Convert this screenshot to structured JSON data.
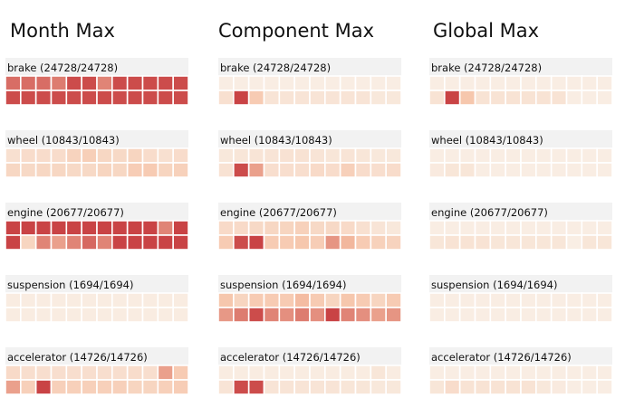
{
  "chart_data": {
    "type": "heatmap",
    "columns": [
      "Month Max",
      "Component Max",
      "Global Max"
    ],
    "components": [
      {
        "name": "brake",
        "label": "brake (24728/24728)"
      },
      {
        "name": "wheel",
        "label": "wheel (10843/10843)"
      },
      {
        "name": "engine",
        "label": "engine (20677/20677)"
      },
      {
        "name": "suspension",
        "label": "suspension (1694/1694)"
      },
      {
        "name": "accelerator",
        "label": "accelerator (14726/14726)"
      }
    ],
    "grid": {
      "rows": 2,
      "cols": 12
    },
    "color_scale": {
      "low": "#f9f1e8",
      "mid": "#f6c2a6",
      "high": "#c4353a"
    },
    "values": [
      [
        [
          [
            0.8,
            0.8,
            0.8,
            0.75,
            0.92,
            0.92,
            0.72,
            0.92,
            0.92,
            0.92,
            0.92,
            0.92
          ],
          [
            0.92,
            0.92,
            0.92,
            0.92,
            0.92,
            0.92,
            0.92,
            0.92,
            0.92,
            0.92,
            0.92,
            0.92
          ]
        ],
        [
          [
            0.18,
            0.22,
            0.22,
            0.22,
            0.32,
            0.36,
            0.28,
            0.26,
            0.3,
            0.22,
            0.18,
            0.22
          ],
          [
            0.28,
            0.26,
            0.28,
            0.28,
            0.26,
            0.26,
            0.3,
            0.28,
            0.38,
            0.4,
            0.3,
            0.34
          ]
        ],
        [
          [
            0.95,
            0.95,
            0.95,
            0.95,
            0.95,
            0.95,
            0.95,
            0.95,
            0.95,
            0.95,
            0.72,
            0.95
          ],
          [
            0.95,
            0.3,
            0.72,
            0.62,
            0.72,
            0.82,
            0.72,
            0.95,
            0.95,
            0.95,
            0.95,
            0.95
          ]
        ],
        [
          [
            0.05,
            0.05,
            0.05,
            0.05,
            0.05,
            0.05,
            0.05,
            0.05,
            0.05,
            0.05,
            0.05,
            0.05
          ],
          [
            0.05,
            0.05,
            0.05,
            0.05,
            0.05,
            0.05,
            0.05,
            0.05,
            0.05,
            0.05,
            0.05,
            0.05
          ]
        ],
        [
          [
            0.24,
            0.2,
            0.2,
            0.2,
            0.2,
            0.2,
            0.2,
            0.2,
            0.22,
            0.2,
            0.62,
            0.4
          ],
          [
            0.62,
            0.35,
            0.95,
            0.35,
            0.35,
            0.35,
            0.35,
            0.35,
            0.3,
            0.3,
            0.35,
            0.38
          ]
        ]
      ],
      [
        [
          [
            0.04,
            0.04,
            0.04,
            0.04,
            0.04,
            0.04,
            0.04,
            0.04,
            0.04,
            0.04,
            0.04,
            0.04
          ],
          [
            0.18,
            0.95,
            0.4,
            0.14,
            0.14,
            0.14,
            0.14,
            0.14,
            0.14,
            0.14,
            0.1,
            0.1
          ]
        ],
        [
          [
            0.1,
            0.12,
            0.14,
            0.14,
            0.16,
            0.16,
            0.14,
            0.12,
            0.14,
            0.12,
            0.1,
            0.1
          ],
          [
            0.16,
            0.92,
            0.62,
            0.2,
            0.2,
            0.2,
            0.24,
            0.22,
            0.35,
            0.22,
            0.2,
            0.22
          ]
        ],
        [
          [
            0.24,
            0.24,
            0.26,
            0.28,
            0.3,
            0.34,
            0.26,
            0.26,
            0.24,
            0.18,
            0.14,
            0.1
          ],
          [
            0.4,
            0.92,
            0.95,
            0.4,
            0.4,
            0.45,
            0.38,
            0.66,
            0.54,
            0.4,
            0.34,
            0.32
          ]
        ],
        [
          [
            0.45,
            0.3,
            0.4,
            0.4,
            0.4,
            0.52,
            0.4,
            0.3,
            0.45,
            0.4,
            0.3,
            0.4
          ],
          [
            0.65,
            0.75,
            0.92,
            0.72,
            0.68,
            0.75,
            0.68,
            0.95,
            0.72,
            0.68,
            0.62,
            0.66
          ]
        ],
        [
          [
            0.05,
            0.05,
            0.05,
            0.05,
            0.05,
            0.05,
            0.05,
            0.05,
            0.05,
            0.05,
            0.12,
            0.05
          ],
          [
            0.14,
            0.92,
            0.92,
            0.14,
            0.14,
            0.14,
            0.14,
            0.14,
            0.12,
            0.12,
            0.1,
            0.1
          ]
        ]
      ],
      [
        [
          [
            0.04,
            0.04,
            0.04,
            0.04,
            0.04,
            0.04,
            0.04,
            0.04,
            0.04,
            0.04,
            0.04,
            0.04
          ],
          [
            0.15,
            0.95,
            0.45,
            0.15,
            0.15,
            0.15,
            0.15,
            0.15,
            0.15,
            0.04,
            0.04,
            0.04
          ]
        ],
        [
          [
            0.04,
            0.04,
            0.04,
            0.04,
            0.04,
            0.04,
            0.04,
            0.04,
            0.04,
            0.04,
            0.04,
            0.04
          ],
          [
            0.07,
            0.12,
            0.12,
            0.04,
            0.04,
            0.04,
            0.04,
            0.04,
            0.04,
            0.04,
            0.04,
            0.04
          ]
        ],
        [
          [
            0.04,
            0.04,
            0.04,
            0.04,
            0.04,
            0.04,
            0.04,
            0.04,
            0.04,
            0.04,
            0.04,
            0.04
          ],
          [
            0.12,
            0.15,
            0.15,
            0.15,
            0.12,
            0.12,
            0.12,
            0.12,
            0.12,
            0.03,
            0.12,
            0.12
          ]
        ],
        [
          [
            0.04,
            0.04,
            0.04,
            0.04,
            0.04,
            0.04,
            0.04,
            0.04,
            0.04,
            0.04,
            0.04,
            0.04
          ],
          [
            0.04,
            0.04,
            0.04,
            0.04,
            0.04,
            0.04,
            0.04,
            0.04,
            0.04,
            0.04,
            0.04,
            0.04
          ]
        ],
        [
          [
            0.04,
            0.04,
            0.04,
            0.04,
            0.04,
            0.04,
            0.04,
            0.04,
            0.04,
            0.04,
            0.04,
            0.04
          ],
          [
            0.12,
            0.22,
            0.15,
            0.15,
            0.15,
            0.15,
            0.15,
            0.1,
            0.07,
            0.04,
            0.04,
            0.04
          ]
        ]
      ]
    ]
  }
}
